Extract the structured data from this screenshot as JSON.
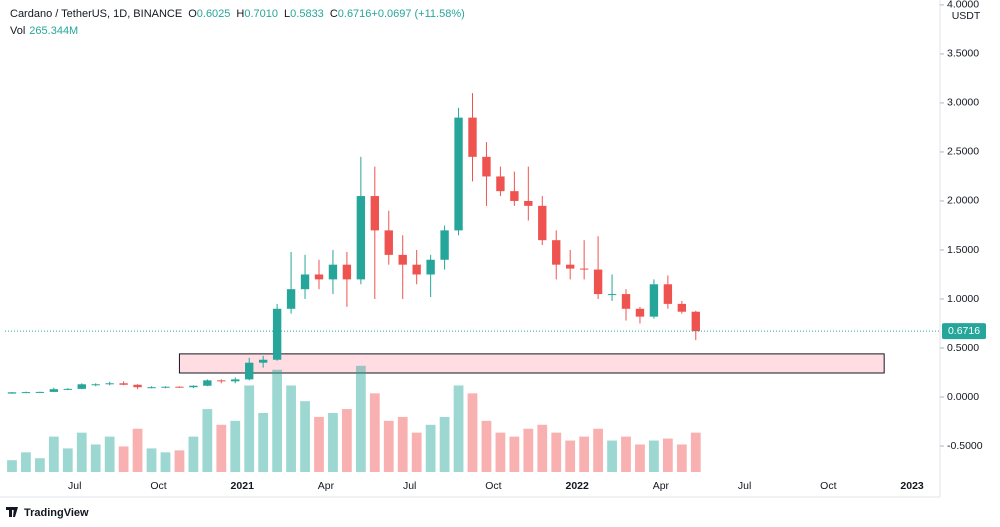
{
  "chart_data": {
    "type": "candlestick",
    "legend": {
      "symbol": "Cardano / TetherUS, 1D, BINANCE",
      "fields": [
        {
          "key": "O",
          "value": "0.6025"
        },
        {
          "key": "H",
          "value": "0.7010"
        },
        {
          "key": "L",
          "value": "0.5833"
        },
        {
          "key": "C",
          "value": "0.6716"
        },
        {
          "key": "",
          "value": "+0.0697 (+11.58%)"
        }
      ],
      "volume_label": "Vol",
      "volume_value": "265.344M"
    },
    "unit": "USDT",
    "brand": "TradingView",
    "up_color": "#26a69a",
    "down_color": "#ef5350",
    "categories": [
      null,
      null,
      null,
      null,
      null,
      "Jul",
      null,
      null,
      null,
      null,
      null,
      "Oct",
      null,
      null,
      null,
      null,
      null,
      "2021",
      null,
      null,
      null,
      null,
      null,
      "Apr",
      null,
      null,
      null,
      null,
      null,
      "Jul",
      null,
      null,
      null,
      null,
      null,
      "Oct",
      null,
      null,
      null,
      null,
      null,
      "2022",
      null,
      null,
      null,
      null,
      null,
      "Apr",
      null,
      null,
      null,
      null,
      null,
      "Jul",
      null,
      null,
      null,
      null,
      null,
      "Oct",
      null,
      null,
      null,
      null,
      null,
      "2023",
      null
    ],
    "open": [
      0.035,
      0.048,
      0.05,
      0.052,
      0.08,
      0.083,
      0.13,
      0.13,
      0.14,
      0.125,
      0.1,
      0.1,
      0.105,
      0.1,
      0.115,
      0.17,
      0.16,
      0.18,
      0.35,
      0.38,
      0.9,
      1.1,
      1.25,
      1.2,
      1.35,
      1.2,
      2.05,
      1.7,
      1.45,
      1.35,
      1.25,
      1.4,
      1.7,
      2.85,
      2.45,
      2.25,
      2.1,
      2.0,
      1.95,
      1.6,
      1.35,
      1.31,
      1.3,
      1.05,
      1.05,
      0.9,
      0.82,
      1.15,
      0.95,
      0.87,
      null,
      null,
      null,
      null,
      null,
      null,
      null,
      null,
      null,
      null,
      null,
      null,
      null,
      null,
      null,
      null,
      null
    ],
    "high": [
      0.05,
      0.055,
      0.055,
      0.095,
      0.09,
      0.14,
      0.14,
      0.155,
      0.16,
      0.13,
      0.11,
      0.11,
      0.11,
      0.12,
      0.18,
      0.18,
      0.2,
      0.4,
      0.42,
      0.95,
      1.48,
      1.45,
      1.4,
      1.5,
      1.48,
      2.45,
      2.35,
      1.9,
      1.65,
      1.5,
      1.45,
      1.75,
      2.95,
      3.1,
      2.6,
      2.35,
      2.3,
      2.35,
      2.05,
      1.7,
      1.5,
      1.6,
      1.64,
      1.25,
      1.1,
      0.92,
      1.2,
      1.24,
      0.98,
      0.88,
      null,
      null,
      null,
      null,
      null,
      null,
      null,
      null,
      null,
      null,
      null,
      null,
      null,
      null,
      null,
      null,
      null
    ],
    "low": [
      0.033,
      0.04,
      0.045,
      0.05,
      0.07,
      0.08,
      0.11,
      0.12,
      0.12,
      0.08,
      0.09,
      0.09,
      0.095,
      0.09,
      0.11,
      0.14,
      0.14,
      0.17,
      0.3,
      0.37,
      0.85,
      1.0,
      1.1,
      1.05,
      0.92,
      1.15,
      1.0,
      1.35,
      1.0,
      1.15,
      1.02,
      1.3,
      1.65,
      2.2,
      1.95,
      2.05,
      1.95,
      1.8,
      1.55,
      1.2,
      1.2,
      1.2,
      1.0,
      0.98,
      0.78,
      0.75,
      0.8,
      0.9,
      0.85,
      0.58,
      null,
      null,
      null,
      null,
      null,
      null,
      null,
      null,
      null,
      null,
      null,
      null,
      null,
      null,
      null,
      null,
      null
    ],
    "close": [
      0.048,
      0.05,
      0.052,
      0.08,
      0.083,
      0.13,
      0.13,
      0.14,
      0.125,
      0.1,
      0.1,
      0.105,
      0.1,
      0.115,
      0.17,
      0.16,
      0.18,
      0.35,
      0.38,
      0.9,
      1.1,
      1.25,
      1.2,
      1.35,
      1.2,
      2.05,
      1.7,
      1.45,
      1.35,
      1.25,
      1.4,
      1.7,
      2.85,
      2.45,
      2.25,
      2.1,
      2.0,
      1.95,
      1.6,
      1.35,
      1.31,
      1.3,
      1.05,
      1.05,
      0.9,
      0.82,
      1.15,
      0.95,
      0.87,
      0.6716,
      null,
      null,
      null,
      null,
      null,
      null,
      null,
      null,
      null,
      null,
      null,
      null,
      null,
      null,
      null,
      null,
      null
    ],
    "volume": [
      300,
      500,
      350,
      900,
      600,
      1000,
      700,
      900,
      650,
      1100,
      600,
      500,
      550,
      900,
      1600,
      1200,
      1300,
      2200,
      1500,
      2600,
      2200,
      1800,
      1400,
      1500,
      1600,
      2700,
      2000,
      1300,
      1400,
      1000,
      1200,
      1400,
      2200,
      2000,
      1300,
      1000,
      900,
      1100,
      1200,
      1000,
      800,
      900,
      1100,
      800,
      900,
      700,
      800,
      850,
      700,
      1000,
      null,
      null,
      null,
      null,
      null,
      null,
      null,
      null,
      null,
      null,
      null,
      null,
      null,
      null,
      null,
      null,
      null
    ],
    "ylim": [
      -1.02,
      4.05
    ],
    "yticks": [
      {
        "value": -0.5,
        "label": "-0.5000"
      },
      {
        "value": 0,
        "label": "0.0000"
      },
      {
        "value": 0.5,
        "label": "0.5000"
      },
      {
        "value": 1,
        "label": "1.0000"
      },
      {
        "value": 1.5,
        "label": "1.5000"
      },
      {
        "value": 2,
        "label": "2.0000"
      },
      {
        "value": 2.5,
        "label": "2.5000"
      },
      {
        "value": 3,
        "label": "3.0000"
      },
      {
        "value": 3.5,
        "label": "3.5000"
      },
      {
        "value": 4,
        "label": "4.0000"
      }
    ],
    "y2lim": [
      0,
      12000
    ],
    "zone": {
      "x": [
        12.5,
        63
      ],
      "y": [
        0.245,
        0.44
      ],
      "color": "#ffdde3"
    }
  }
}
